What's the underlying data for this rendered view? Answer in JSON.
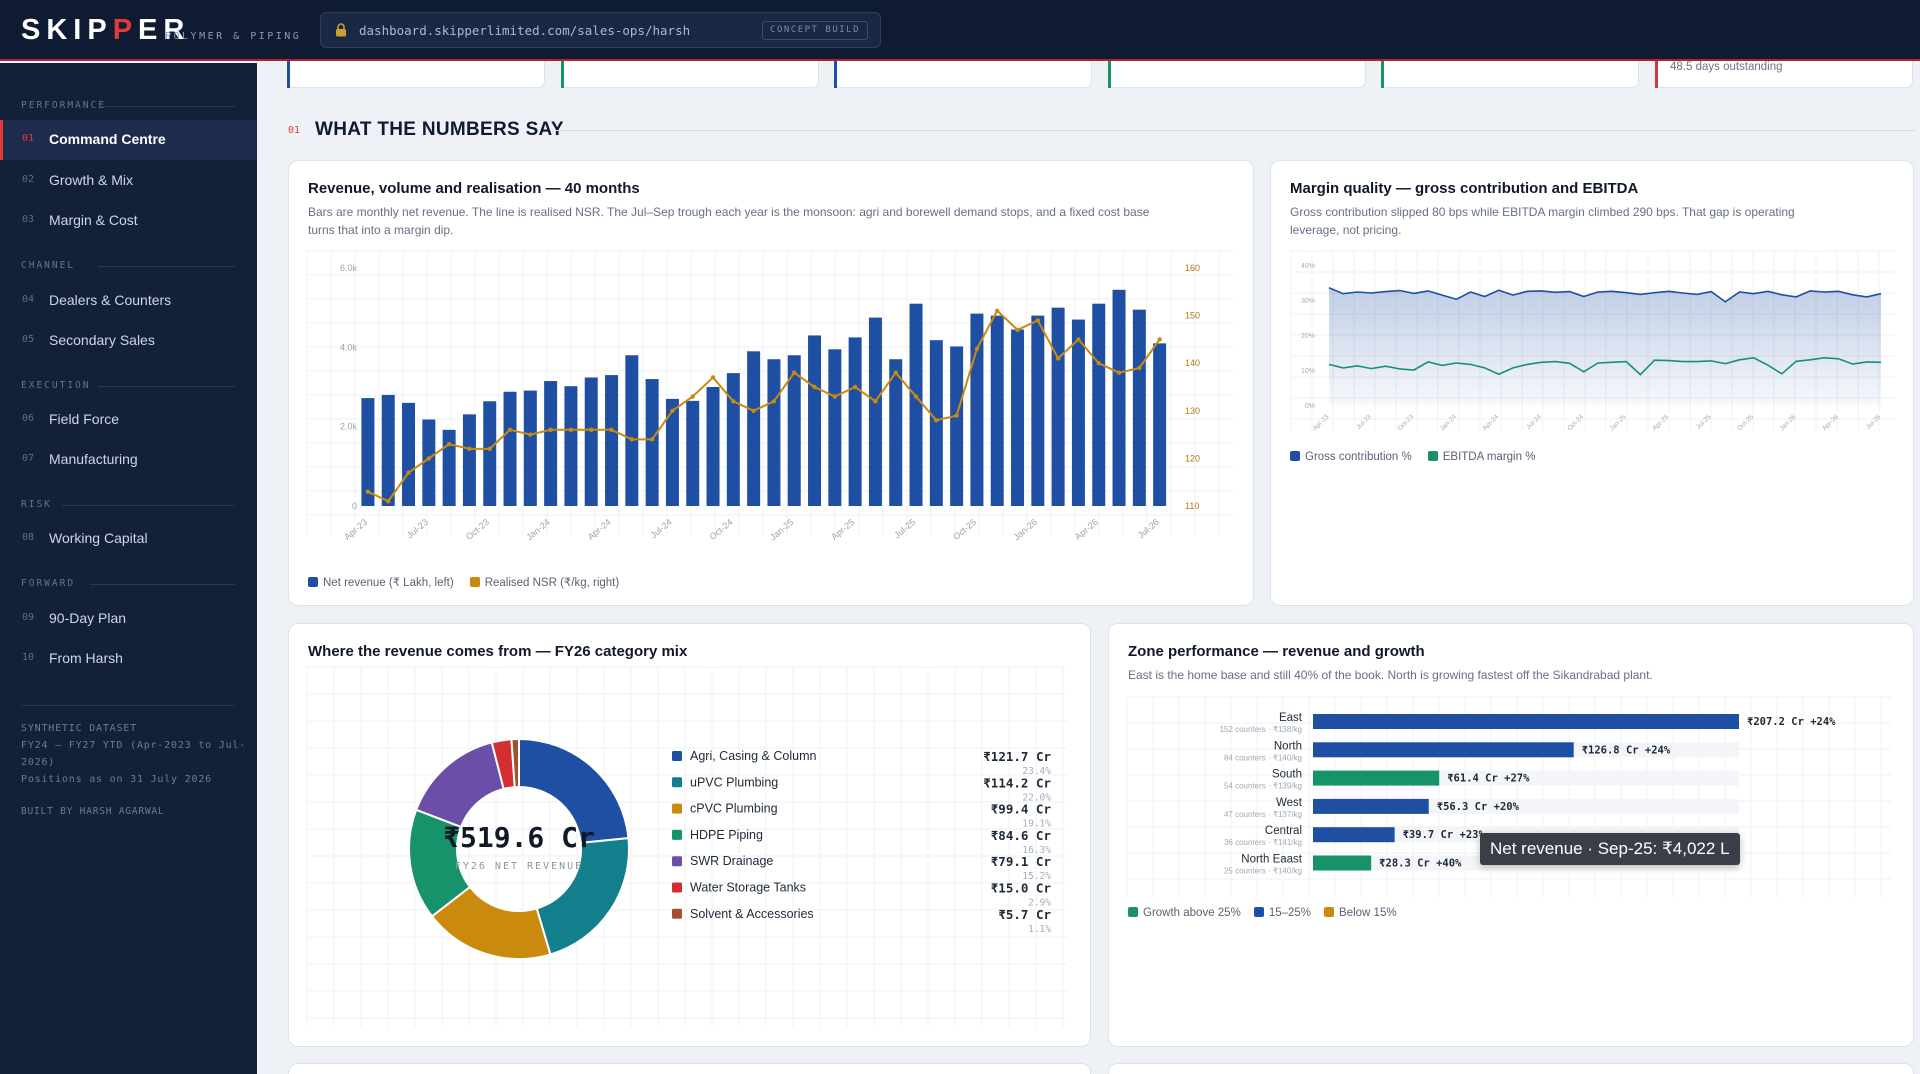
{
  "brand": {
    "logo_a": "SKIP",
    "logo_b": "P",
    "logo_c": "ER",
    "tagline": "POLYMER & PIPING"
  },
  "browser": {
    "url": "dashboard.skipperlimited.com/sales-ops/harsh",
    "badge": "CONCEPT BUILD"
  },
  "sidebar": {
    "groups": [
      {
        "label": "PERFORMANCE",
        "items": [
          {
            "num": "01",
            "label": "Command Centre",
            "active": true
          },
          {
            "num": "02",
            "label": "Growth & Mix"
          },
          {
            "num": "03",
            "label": "Margin & Cost"
          }
        ]
      },
      {
        "label": "CHANNEL",
        "items": [
          {
            "num": "04",
            "label": "Dealers & Counters"
          },
          {
            "num": "05",
            "label": "Secondary Sales"
          }
        ]
      },
      {
        "label": "EXECUTION",
        "items": [
          {
            "num": "06",
            "label": "Field Force"
          },
          {
            "num": "07",
            "label": "Manufacturing"
          }
        ]
      },
      {
        "label": "RISK",
        "items": [
          {
            "num": "08",
            "label": "Working Capital"
          }
        ]
      },
      {
        "label": "FORWARD",
        "items": [
          {
            "num": "09",
            "label": "90-Day Plan"
          },
          {
            "num": "10",
            "label": "From Harsh"
          }
        ]
      }
    ],
    "note_lines": [
      "SYNTHETIC DATASET",
      "FY24 – FY27 YTD (Apr-2023 to Jul-",
      "2026)",
      "Positions as on 31 July 2026"
    ],
    "built_by": "BUILT BY HARSH AGARWAL"
  },
  "kpi_strip": {
    "accents": [
      "#1f4fa3",
      "#16936a",
      "#1f4fa3",
      "#16936a",
      "#16936a",
      "#d23838"
    ],
    "last_text": "48.5 days outstanding"
  },
  "section": {
    "num": "01",
    "title": "WHAT THE NUMBERS SAY"
  },
  "colors": {
    "navy": "#1f4fa3",
    "gold": "#c98a0e",
    "green": "#16936a",
    "teal": "#137f8d",
    "purple": "#6b4ea8",
    "red": "#d42f2f",
    "brown": "#a0522d"
  },
  "revenue_card": {
    "title": "Revenue, volume and realisation — 40 months",
    "subtitle_1": "Bars are monthly net revenue. The line is realised NSR. The Jul–Sep trough each year is the monsoon: agri and borewell demand stops, and a fixed cost base",
    "subtitle_2": "turns that into a margin dip.",
    "legend": [
      "Net revenue (₹ Lakh, left)",
      "Realised NSR (₹/kg, right)"
    ]
  },
  "margin_card": {
    "title": "Margin quality — gross contribution and EBITDA",
    "subtitle_1": "Gross contribution slipped 80 bps while EBITDA margin climbed 290 bps. That gap is operating",
    "subtitle_2": "leverage, not pricing.",
    "legend": [
      "Gross contribution %",
      "EBITDA margin %"
    ]
  },
  "mix_card": {
    "title": "Where the revenue comes from — FY26 category mix",
    "center_value": "₹519.6 Cr",
    "center_label": "FY26 NET REVENUE"
  },
  "zone_card": {
    "title": "Zone performance — revenue and growth",
    "subtitle": "East is the home base and still 40% of the book. North is growing fastest off the Sikandrabad plant.",
    "legend": [
      "Growth above 25%",
      "15–25%",
      "Below 15%"
    ]
  },
  "tooltip": "Net revenue · Sep-25: ₹4,022 L",
  "chart_data": [
    {
      "type": "bar",
      "title": "Revenue, volume and realisation — 40 months",
      "categories": [
        "Apr-23",
        "May-23",
        "Jun-23",
        "Jul-23",
        "Aug-23",
        "Sep-23",
        "Oct-23",
        "Nov-23",
        "Dec-23",
        "Jan-24",
        "Feb-24",
        "Mar-24",
        "Apr-24",
        "May-24",
        "Jun-24",
        "Jul-24",
        "Aug-24",
        "Sep-24",
        "Oct-24",
        "Nov-24",
        "Dec-24",
        "Jan-25",
        "Feb-25",
        "Mar-25",
        "Apr-25",
        "May-25",
        "Jun-25",
        "Jul-25",
        "Aug-25",
        "Sep-25",
        "Oct-25",
        "Nov-25",
        "Dec-25",
        "Jan-26",
        "Feb-26",
        "Mar-26",
        "Apr-26",
        "May-26",
        "Jun-26",
        "Jul-26"
      ],
      "x_tick_labels": [
        "Apr-23",
        "Jul-23",
        "Oct-23",
        "Jan-24",
        "Apr-24",
        "Jul-24",
        "Oct-24",
        "Jan-25",
        "Apr-25",
        "Jul-25",
        "Oct-25",
        "Jan-26",
        "Apr-26",
        "Jul-26"
      ],
      "series": [
        {
          "name": "Net revenue (₹ Lakh, left)",
          "axis": "left",
          "values": [
            2720,
            2800,
            2600,
            2180,
            1920,
            2310,
            2640,
            2880,
            2910,
            3150,
            3020,
            3240,
            3300,
            3800,
            3200,
            2700,
            2650,
            3000,
            3350,
            3900,
            3700,
            3800,
            4300,
            3950,
            4250,
            4750,
            3700,
            5100,
            4180,
            4022,
            4850,
            4800,
            4450,
            4800,
            5000,
            4700,
            5100,
            5450,
            4950,
            4100
          ]
        },
        {
          "name": "Realised NSR (₹/kg, right)",
          "axis": "right",
          "type": "line",
          "values": [
            113,
            111,
            117,
            120,
            123,
            122,
            122,
            126,
            125,
            126,
            126,
            126,
            126,
            124,
            124,
            130,
            133,
            137,
            132,
            130,
            132,
            138,
            135,
            133,
            135,
            132,
            138,
            133,
            128,
            129,
            143,
            151,
            147,
            149,
            141,
            145,
            140,
            138,
            139,
            145
          ]
        }
      ],
      "y_left": {
        "ticks": [
          "0",
          "2.0k",
          "4.0k",
          "6.0k"
        ],
        "ylim": [
          0,
          6000
        ]
      },
      "y_right": {
        "ticks": [
          "110",
          "120",
          "130",
          "140",
          "150",
          "160"
        ],
        "ylim": [
          110,
          160
        ]
      }
    },
    {
      "type": "area",
      "title": "Margin quality — gross contribution and EBITDA",
      "x_tick_labels": [
        "Apr-23",
        "Jul-23",
        "Oct-23",
        "Jan-24",
        "Apr-24",
        "Jul-24",
        "Oct-24",
        "Jan-25",
        "Apr-25",
        "Jul-25",
        "Oct-25",
        "Jan-26",
        "Apr-26",
        "Jul-26"
      ],
      "y_ticks": [
        "0%",
        "10%",
        "20%",
        "30%",
        "40%"
      ],
      "ylim": [
        0,
        40
      ],
      "series": [
        {
          "name": "Gross contribution %",
          "values": [
            33.5,
            31.8,
            32.3,
            32.0,
            32.4,
            32.7,
            31.9,
            32.6,
            31.4,
            30.2,
            32.3,
            31.0,
            32.8,
            31.4,
            32.5,
            32.6,
            32.2,
            32.4,
            31.0,
            32.3,
            32.5,
            32.1,
            31.6,
            32.1,
            32.5,
            32.0,
            31.6,
            32.4,
            29.5,
            32.3,
            31.8,
            32.5,
            31.5,
            30.9,
            32.6,
            32.3,
            32.5,
            31.5,
            30.9,
            31.8
          ]
        },
        {
          "name": "EBITDA margin %",
          "values": [
            11.6,
            10.6,
            11.2,
            10.4,
            11.1,
            10.3,
            10.0,
            12.3,
            11.3,
            12.0,
            11.6,
            10.6,
            8.8,
            10.6,
            11.6,
            12.2,
            12.4,
            11.9,
            9.5,
            12.0,
            12.2,
            12.4,
            8.7,
            12.8,
            12.7,
            12.4,
            12.4,
            12.6,
            11.8,
            12.9,
            13.5,
            11.4,
            8.9,
            12.5,
            12.9,
            13.5,
            13.2,
            11.7,
            12.3,
            12.2
          ]
        }
      ]
    },
    {
      "type": "pie",
      "title": "Where the revenue comes from — FY26 category mix",
      "labels": [
        "Agri, Casing & Column",
        "uPVC Plumbing",
        "cPVC Plumbing",
        "HDPE Piping",
        "SWR Drainage",
        "Water Storage Tanks",
        "Solvent & Accessories"
      ],
      "values": [
        121.7,
        114.2,
        99.4,
        84.6,
        79.1,
        15.0,
        5.7
      ],
      "value_labels": [
        "₹121.7 Cr",
        "₹114.2 Cr",
        "₹99.4 Cr",
        "₹84.6 Cr",
        "₹79.1 Cr",
        "₹15.0 Cr",
        "₹5.7 Cr"
      ],
      "share_labels": [
        "23.4%",
        "22.0%",
        "19.1%",
        "16.3%",
        "15.2%",
        "2.9%",
        "1.1%"
      ],
      "colors": [
        "#1f4fa3",
        "#137f8d",
        "#c98a0e",
        "#16936a",
        "#6b4ea8",
        "#d42f2f",
        "#a0522d"
      ]
    },
    {
      "type": "bar",
      "orientation": "horizontal",
      "title": "Zone performance — revenue and growth",
      "categories": [
        "East",
        "North",
        "South",
        "West",
        "Central",
        "North Eaast"
      ],
      "sublabels": [
        "152 counters · ₹138/kg",
        "84 counters · ₹140/kg",
        "54 counters · ₹139/kg",
        "47 counters · ₹137/kg",
        "36 counters · ₹141/kg",
        "25 counters · ₹140/kg"
      ],
      "values": [
        207.2,
        126.8,
        61.4,
        56.3,
        39.7,
        28.3
      ],
      "value_labels": [
        "₹207.2 Cr",
        "₹126.8 Cr",
        "₹61.4 Cr",
        "₹56.3 Cr",
        "₹39.7 Cr",
        "₹28.3 Cr"
      ],
      "growth_labels": [
        "+24%",
        "+24%",
        "+27%",
        "+20%",
        "+23%",
        "+40%"
      ],
      "bar_colors": [
        "#1f4fa3",
        "#1f4fa3",
        "#16936a",
        "#1f4fa3",
        "#1f4fa3",
        "#16936a"
      ],
      "xlim": [
        0,
        207.2
      ]
    }
  ]
}
